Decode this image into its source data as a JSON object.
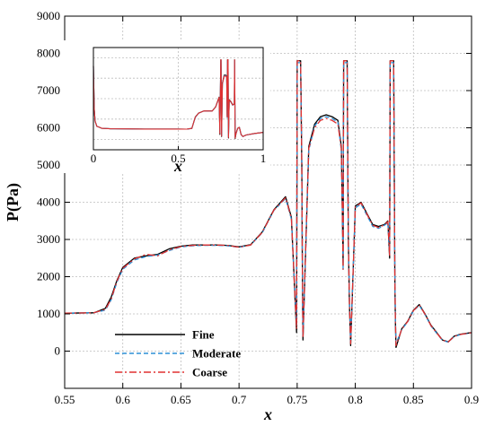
{
  "chart_data": [
    {
      "type": "line",
      "xlabel": "x",
      "ylabel": "P(Pa)",
      "xlim": [
        0.55,
        0.9
      ],
      "ylim": [
        -1000,
        9000
      ],
      "xticks": [
        "0.55",
        "0.6",
        "0.65",
        "0.7",
        "0.75",
        "0.8",
        "0.85",
        "0.9"
      ],
      "yticks": [
        "0",
        "1000",
        "2000",
        "3000",
        "4000",
        "5000",
        "6000",
        "7000",
        "8000",
        "9000"
      ],
      "grid": true,
      "legend_position": "bottom-left",
      "series": [
        {
          "name": "Fine",
          "color": "#000000",
          "style": "solid",
          "x": [
            0.55,
            0.575,
            0.585,
            0.59,
            0.595,
            0.6,
            0.61,
            0.62,
            0.63,
            0.64,
            0.65,
            0.66,
            0.67,
            0.68,
            0.69,
            0.7,
            0.71,
            0.72,
            0.73,
            0.74,
            0.745,
            0.748,
            0.7495,
            0.75,
            0.753,
            0.754,
            0.7545,
            0.755,
            0.76,
            0.765,
            0.77,
            0.775,
            0.78,
            0.785,
            0.788,
            0.789,
            0.7895,
            0.79,
            0.793,
            0.794,
            0.795,
            0.796,
            0.8,
            0.805,
            0.81,
            0.815,
            0.82,
            0.825,
            0.828,
            0.8295,
            0.83,
            0.833,
            0.834,
            0.8345,
            0.835,
            0.84,
            0.845,
            0.85,
            0.855,
            0.86,
            0.865,
            0.87,
            0.875,
            0.88,
            0.885,
            0.89,
            0.9
          ],
          "y": [
            1020,
            1030,
            1150,
            1450,
            1900,
            2250,
            2500,
            2560,
            2600,
            2750,
            2820,
            2850,
            2850,
            2850,
            2840,
            2800,
            2860,
            3200,
            3800,
            4150,
            3600,
            1500,
            500,
            7800,
            7800,
            5000,
            2000,
            300,
            5500,
            6100,
            6300,
            6350,
            6300,
            6200,
            5500,
            3500,
            2300,
            7800,
            7800,
            3000,
            1200,
            150,
            3900,
            4000,
            3700,
            3400,
            3350,
            3400,
            3500,
            2500,
            7800,
            7800,
            2000,
            800,
            100,
            600,
            800,
            1100,
            1250,
            1000,
            700,
            500,
            300,
            250,
            400,
            450,
            500
          ]
        },
        {
          "name": "Moderate",
          "color": "#2b8fd6",
          "style": "dashed",
          "x": [
            0.55,
            0.575,
            0.585,
            0.59,
            0.595,
            0.6,
            0.61,
            0.62,
            0.63,
            0.64,
            0.65,
            0.66,
            0.67,
            0.68,
            0.69,
            0.7,
            0.71,
            0.72,
            0.73,
            0.74,
            0.745,
            0.748,
            0.7495,
            0.75,
            0.753,
            0.754,
            0.7545,
            0.755,
            0.76,
            0.765,
            0.77,
            0.775,
            0.78,
            0.785,
            0.788,
            0.789,
            0.7895,
            0.79,
            0.793,
            0.794,
            0.795,
            0.796,
            0.8,
            0.805,
            0.81,
            0.815,
            0.82,
            0.825,
            0.828,
            0.8295,
            0.83,
            0.833,
            0.834,
            0.8345,
            0.835,
            0.84,
            0.845,
            0.85,
            0.855,
            0.86,
            0.865,
            0.87,
            0.875,
            0.88,
            0.885,
            0.89,
            0.9
          ],
          "y": [
            1020,
            1030,
            1100,
            1380,
            1850,
            2200,
            2450,
            2540,
            2580,
            2700,
            2800,
            2830,
            2840,
            2840,
            2830,
            2790,
            2850,
            3180,
            3780,
            4100,
            3550,
            1600,
            700,
            7750,
            7750,
            5100,
            2100,
            400,
            5400,
            6050,
            6250,
            6300,
            6250,
            6150,
            5400,
            3600,
            2150,
            7750,
            7750,
            3100,
            1300,
            250,
            3850,
            3950,
            3650,
            3350,
            3300,
            3380,
            3450,
            2600,
            7750,
            7750,
            2100,
            900,
            200,
            580,
            780,
            1080,
            1230,
            980,
            680,
            480,
            290,
            240,
            390,
            440,
            490
          ]
        },
        {
          "name": "Coarse",
          "color": "#e03030",
          "style": "dashdot",
          "x": [
            0.55,
            0.575,
            0.585,
            0.59,
            0.595,
            0.6,
            0.61,
            0.62,
            0.63,
            0.64,
            0.65,
            0.66,
            0.67,
            0.68,
            0.69,
            0.7,
            0.71,
            0.72,
            0.73,
            0.74,
            0.745,
            0.748,
            0.7495,
            0.75,
            0.753,
            0.754,
            0.7545,
            0.755,
            0.76,
            0.765,
            0.77,
            0.775,
            0.78,
            0.785,
            0.788,
            0.789,
            0.7895,
            0.79,
            0.793,
            0.794,
            0.795,
            0.796,
            0.8,
            0.805,
            0.81,
            0.815,
            0.82,
            0.825,
            0.828,
            0.8295,
            0.83,
            0.833,
            0.834,
            0.8345,
            0.835,
            0.84,
            0.845,
            0.85,
            0.855,
            0.86,
            0.865,
            0.87,
            0.875,
            0.88,
            0.885,
            0.89,
            0.9
          ],
          "y": [
            1020,
            1030,
            1120,
            1400,
            1880,
            2230,
            2480,
            2600,
            2560,
            2720,
            2810,
            2840,
            2850,
            2850,
            2840,
            2790,
            2850,
            3190,
            3790,
            4120,
            3580,
            1550,
            600,
            7800,
            7800,
            5050,
            2050,
            350,
            5450,
            6000,
            6200,
            6250,
            6200,
            6100,
            5450,
            3550,
            2200,
            7800,
            7800,
            3050,
            1250,
            200,
            3880,
            3980,
            3680,
            3380,
            3320,
            3390,
            3480,
            2550,
            7800,
            7800,
            2050,
            850,
            150,
            590,
            790,
            1090,
            1240,
            990,
            690,
            490,
            295,
            245,
            395,
            445,
            495
          ]
        }
      ]
    },
    {
      "type": "line",
      "title": "",
      "xlabel": "x",
      "ylabel": "",
      "xlim": [
        0,
        1
      ],
      "ylim": [
        -1000,
        9000
      ],
      "xticks": [
        "0",
        "0.5",
        "1"
      ],
      "grid": true,
      "series": [
        {
          "name": "Fine",
          "color": "#000000",
          "x": [
            0,
            0.005,
            0.01,
            0.02,
            0.05,
            0.1,
            0.2,
            0.3,
            0.4,
            0.5,
            0.55,
            0.58,
            0.6,
            0.62,
            0.65,
            0.7,
            0.72,
            0.74,
            0.745,
            0.75,
            0.752,
            0.755,
            0.76,
            0.77,
            0.78,
            0.785,
            0.788,
            0.79,
            0.793,
            0.796,
            0.8,
            0.81,
            0.82,
            0.83,
            0.832,
            0.835,
            0.84,
            0.85,
            0.86,
            0.87,
            0.88,
            0.9,
            0.95,
            1.0
          ],
          "y": [
            7200,
            3000,
            1800,
            1300,
            1100,
            1050,
            1040,
            1030,
            1030,
            1030,
            1020,
            1100,
            2200,
            2600,
            2800,
            2800,
            3200,
            4150,
            500,
            7800,
            7800,
            300,
            5500,
            6300,
            6300,
            6200,
            2300,
            7800,
            7800,
            150,
            3900,
            3700,
            3400,
            3500,
            7800,
            100,
            600,
            1100,
            1200,
            500,
            300,
            450,
            600,
            700
          ]
        },
        {
          "name": "Moderate",
          "color": "#2b8fd6",
          "x": [
            0,
            0.005,
            0.01,
            0.02,
            0.05,
            0.1,
            0.2,
            0.3,
            0.4,
            0.5,
            0.55,
            0.58,
            0.6,
            0.62,
            0.65,
            0.7,
            0.72,
            0.74,
            0.745,
            0.75,
            0.752,
            0.755,
            0.76,
            0.77,
            0.78,
            0.785,
            0.788,
            0.79,
            0.793,
            0.796,
            0.8,
            0.81,
            0.82,
            0.83,
            0.832,
            0.835,
            0.84,
            0.85,
            0.86,
            0.87,
            0.88,
            0.9,
            0.95,
            1.0
          ],
          "y": [
            7150,
            3000,
            1800,
            1300,
            1100,
            1050,
            1040,
            1030,
            1030,
            1030,
            1020,
            1080,
            2150,
            2580,
            2790,
            2790,
            3180,
            4100,
            700,
            7750,
            7750,
            400,
            5400,
            6250,
            6250,
            6150,
            2150,
            7750,
            7750,
            250,
            3850,
            3650,
            3350,
            3450,
            7750,
            200,
            580,
            1080,
            1180,
            480,
            290,
            440,
            590,
            690
          ]
        },
        {
          "name": "Coarse",
          "color": "#e03030",
          "x": [
            0,
            0.005,
            0.01,
            0.02,
            0.05,
            0.1,
            0.2,
            0.3,
            0.4,
            0.5,
            0.55,
            0.58,
            0.6,
            0.62,
            0.65,
            0.7,
            0.72,
            0.74,
            0.745,
            0.75,
            0.752,
            0.755,
            0.76,
            0.77,
            0.78,
            0.785,
            0.788,
            0.79,
            0.793,
            0.796,
            0.8,
            0.81,
            0.82,
            0.83,
            0.832,
            0.835,
            0.84,
            0.85,
            0.86,
            0.87,
            0.88,
            0.9,
            0.95,
            1.0
          ],
          "y": [
            7180,
            3000,
            1800,
            1300,
            1100,
            1050,
            1040,
            1030,
            1030,
            1030,
            1020,
            1090,
            2180,
            2590,
            2800,
            2790,
            3190,
            4120,
            600,
            7800,
            7800,
            350,
            5450,
            6200,
            6200,
            6100,
            2200,
            7800,
            7800,
            200,
            3880,
            3680,
            3380,
            3480,
            7800,
            150,
            590,
            1090,
            1190,
            490,
            295,
            445,
            595,
            695
          ]
        }
      ]
    }
  ]
}
